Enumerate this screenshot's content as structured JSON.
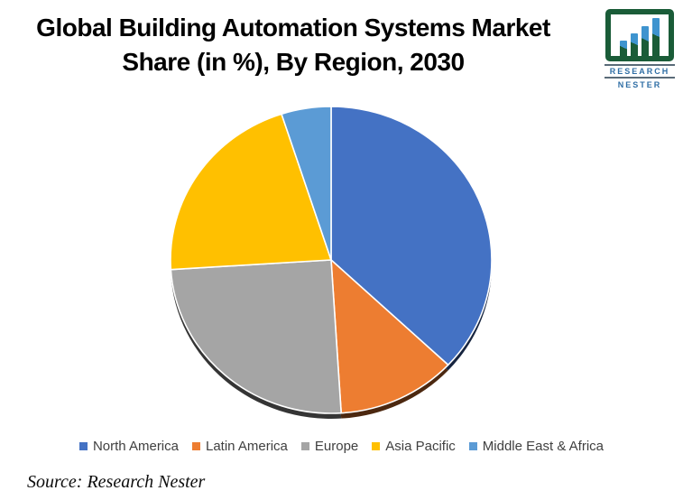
{
  "header": {
    "title_line1": "Global Building Automation Systems Market",
    "title_line2": "Share (in %), By Region, 2030"
  },
  "logo": {
    "line1": "RESEARCH",
    "line2": "NESTER"
  },
  "chart_data": {
    "type": "pie",
    "title": "Global Building Automation Systems Market Share (in %), By Region, 2030",
    "unit": "%",
    "categories": [
      "North America",
      "Latin America",
      "Europe",
      "Asia Pacific",
      "Middle East & Africa"
    ],
    "values": [
      37,
      12,
      25,
      21,
      5
    ],
    "colors": [
      "#4472C4",
      "#ED7D31",
      "#A5A5A5",
      "#FFC000",
      "#5B9BD5"
    ],
    "start_angle_deg": 0,
    "direction": "clockwise",
    "legend_position": "bottom",
    "slice_border_color": "#FFFFFF"
  },
  "source": {
    "text": "Source: Research Nester"
  }
}
